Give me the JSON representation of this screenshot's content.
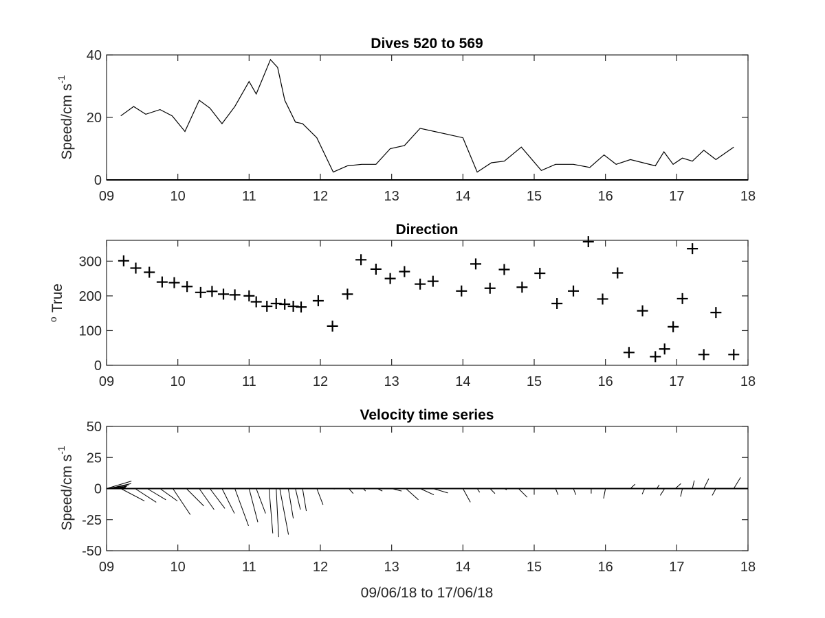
{
  "chart_data": [
    {
      "type": "line",
      "title": "Dives 520 to 569",
      "ylabel": "Speed/cm s",
      "ylabel_exponent": "-1",
      "xlim": [
        9,
        18
      ],
      "ylim": [
        0,
        40
      ],
      "x_ticks": [
        "09",
        "10",
        "11",
        "12",
        "13",
        "14",
        "15",
        "16",
        "17",
        "18"
      ],
      "y_ticks": [
        "0",
        "20",
        "40"
      ],
      "zero_line": true,
      "series": [
        {
          "x": [
            9.2,
            9.38,
            9.55,
            9.75,
            9.92,
            10.1,
            10.3,
            10.45,
            10.62,
            10.8,
            11.0,
            11.1,
            11.3,
            11.4,
            11.5,
            11.65,
            11.75,
            11.95,
            12.18,
            12.38,
            12.58,
            12.78,
            12.98,
            13.18,
            13.4,
            14.0,
            14.2,
            14.4,
            14.58,
            14.82,
            15.1,
            15.3,
            15.55,
            15.78,
            15.98,
            16.15,
            16.35,
            16.7,
            16.82,
            16.95,
            17.08,
            17.22,
            17.38,
            17.55,
            17.8
          ],
          "values": [
            20.5,
            23.5,
            21.0,
            22.5,
            20.5,
            15.5,
            25.5,
            23.0,
            18.0,
            23.5,
            31.5,
            27.5,
            38.5,
            36.0,
            25.5,
            18.5,
            18.0,
            13.5,
            2.5,
            4.5,
            5.0,
            5.0,
            10.0,
            11.0,
            16.5,
            13.5,
            2.5,
            5.5,
            6.0,
            10.5,
            3.0,
            5.0,
            5.0,
            4.0,
            8.0,
            5.0,
            6.5,
            4.5,
            9.0,
            5.0,
            7.0,
            6.0,
            9.5,
            6.5,
            10.5
          ]
        }
      ]
    },
    {
      "type": "scatter",
      "title": "Direction",
      "ylabel": "True",
      "ylabel_prefix": "o",
      "xlim": [
        9,
        18
      ],
      "ylim": [
        0,
        360
      ],
      "x_ticks": [
        "09",
        "10",
        "11",
        "12",
        "13",
        "14",
        "15",
        "16",
        "17",
        "18"
      ],
      "y_ticks": [
        "0",
        "100",
        "200",
        "300"
      ],
      "marker": "+",
      "series": [
        {
          "x": [
            9.24,
            9.41,
            9.6,
            9.78,
            9.95,
            10.13,
            10.32,
            10.48,
            10.64,
            10.8,
            11.0,
            11.1,
            11.25,
            11.38,
            11.5,
            11.62,
            11.73,
            11.97,
            12.17,
            12.38,
            12.57,
            12.78,
            12.98,
            13.18,
            13.4,
            13.58,
            13.98,
            14.18,
            14.38,
            14.58,
            14.83,
            15.08,
            15.32,
            15.55,
            15.76,
            15.96,
            16.17,
            16.33,
            16.52,
            16.7,
            16.83,
            16.95,
            17.08,
            17.22,
            17.38,
            17.55,
            17.8
          ],
          "values": [
            301,
            280,
            268,
            240,
            238,
            227,
            210,
            213,
            205,
            203,
            200,
            183,
            170,
            178,
            176,
            170,
            168,
            186,
            113,
            205,
            304,
            277,
            250,
            270,
            234,
            242,
            214,
            292,
            222,
            276,
            225,
            265,
            178,
            214,
            356,
            191,
            266,
            37,
            157,
            25,
            47,
            111,
            192,
            336,
            31,
            152,
            31
          ]
        }
      ]
    },
    {
      "type": "stick",
      "title": "Velocity time series",
      "ylabel": "Speed/cm s",
      "ylabel_exponent": "-1",
      "xlabel": "09/06/18 to 17/06/18",
      "xlim": [
        9,
        18
      ],
      "ylim": [
        -50,
        50
      ],
      "x_ticks": [
        "09",
        "10",
        "11",
        "12",
        "13",
        "14",
        "15",
        "16",
        "17",
        "18"
      ],
      "y_ticks": [
        "50",
        "25",
        "0",
        "-25",
        "-50"
      ],
      "zero_line": true,
      "series": [
        {
          "name": "",
          "x": [
            9.0,
            9.03,
            9.05,
            9.08,
            9.1,
            9.13,
            9.15,
            9.2,
            9.4,
            9.57,
            9.75,
            9.93,
            10.12,
            10.3,
            10.45,
            10.62,
            10.8,
            11.0,
            11.1,
            11.28,
            11.38,
            11.43,
            11.55,
            11.65,
            11.75,
            11.95,
            12.18,
            12.4,
            12.6,
            12.8,
            13.0,
            13.2,
            13.4,
            13.58,
            14.0,
            14.2,
            14.38,
            14.58,
            14.78,
            15.0,
            15.3,
            15.55,
            15.8,
            16.0,
            16.35,
            16.55,
            16.72,
            16.83,
            16.98,
            17.08,
            17.22,
            17.38,
            17.55,
            17.8
          ],
          "u": [
            20,
            18,
            15,
            12,
            10,
            8,
            6,
            19.0,
            17.0,
            15.0,
            14.0,
            14.0,
            14.0,
            12.0,
            12.0,
            10.0,
            11.0,
            7.0,
            7.5,
            3.0,
            2.0,
            7.0,
            4.0,
            4.0,
            3.0,
            5.0,
            1.0,
            3.5,
            2.0,
            4.0,
            8.0,
            10.0,
            11.0,
            12.0,
            6.0,
            2.0,
            4.0,
            2.0,
            7.0,
            0.0,
            2.0,
            2.0,
            0.0,
            -1.5,
            3.8,
            -2.0,
            2.0,
            -3.5,
            4.5,
            -1.5,
            1.5,
            4.0,
            -3.0,
            5.5
          ],
          "v": [
            6,
            4,
            3,
            2,
            1.5,
            1,
            0.5,
            -10.0,
            -11.0,
            -9.0,
            -10.0,
            -21.0,
            -14.0,
            -17.0,
            -16.0,
            -20.0,
            -30.0,
            -27.0,
            -20.0,
            -36.0,
            -39.0,
            -37.0,
            -24.0,
            -17.0,
            -18.0,
            -13.0,
            -0.5,
            -4.0,
            -2.0,
            -2.0,
            -2.0,
            -9.0,
            -5.0,
            -3.5,
            -11.0,
            -3.0,
            -4.0,
            -1.0,
            -7.0,
            -5.0,
            -5.0,
            -5.0,
            -4.0,
            -8.0,
            3.5,
            -4.5,
            3.0,
            -5.5,
            4.0,
            -6.5,
            6.5,
            8.0,
            -5.5,
            9.0
          ]
        }
      ]
    }
  ]
}
